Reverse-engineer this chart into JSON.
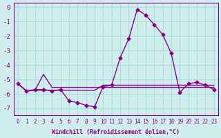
{
  "xlabel": "Windchill (Refroidissement éolien,°C)",
  "bg_color": "#d0eeee",
  "grid_color": "#aadddd",
  "line_color": "#880088",
  "hours": [
    0,
    1,
    2,
    3,
    4,
    5,
    6,
    7,
    8,
    9,
    10,
    11,
    12,
    13,
    14,
    15,
    16,
    17,
    18,
    19,
    20,
    21,
    22,
    23
  ],
  "windchill": [
    -5.3,
    -5.8,
    -5.7,
    -5.7,
    -5.8,
    -5.7,
    -6.5,
    -6.6,
    -6.8,
    -6.9,
    -5.5,
    -5.4,
    -3.5,
    -2.2,
    -0.15,
    -0.55,
    -1.2,
    -1.9,
    -3.2,
    -5.9,
    -5.3,
    -5.2,
    -5.4,
    -5.7
  ],
  "line2": [
    -5.3,
    -5.8,
    -5.75,
    -4.65,
    -5.55,
    -5.55,
    -5.55,
    -5.55,
    -5.55,
    -5.55,
    -5.55,
    -5.55,
    -5.55,
    -5.55,
    -5.55,
    -5.55,
    -5.55,
    -5.55,
    -5.55,
    -5.55,
    -5.55,
    -5.55,
    -5.55,
    -5.55
  ],
  "line3": [
    -5.3,
    -5.8,
    -5.75,
    -5.75,
    -5.75,
    -5.75,
    -5.75,
    -5.75,
    -5.75,
    -5.75,
    -5.4,
    -5.4,
    -5.4,
    -5.4,
    -5.4,
    -5.4,
    -5.4,
    -5.4,
    -5.4,
    -5.4,
    -5.4,
    -5.4,
    -5.4,
    -5.4
  ],
  "ylim": [
    -7.5,
    0.3
  ],
  "yticks": [
    0,
    -1,
    -2,
    -3,
    -4,
    -5,
    -6,
    -7
  ]
}
